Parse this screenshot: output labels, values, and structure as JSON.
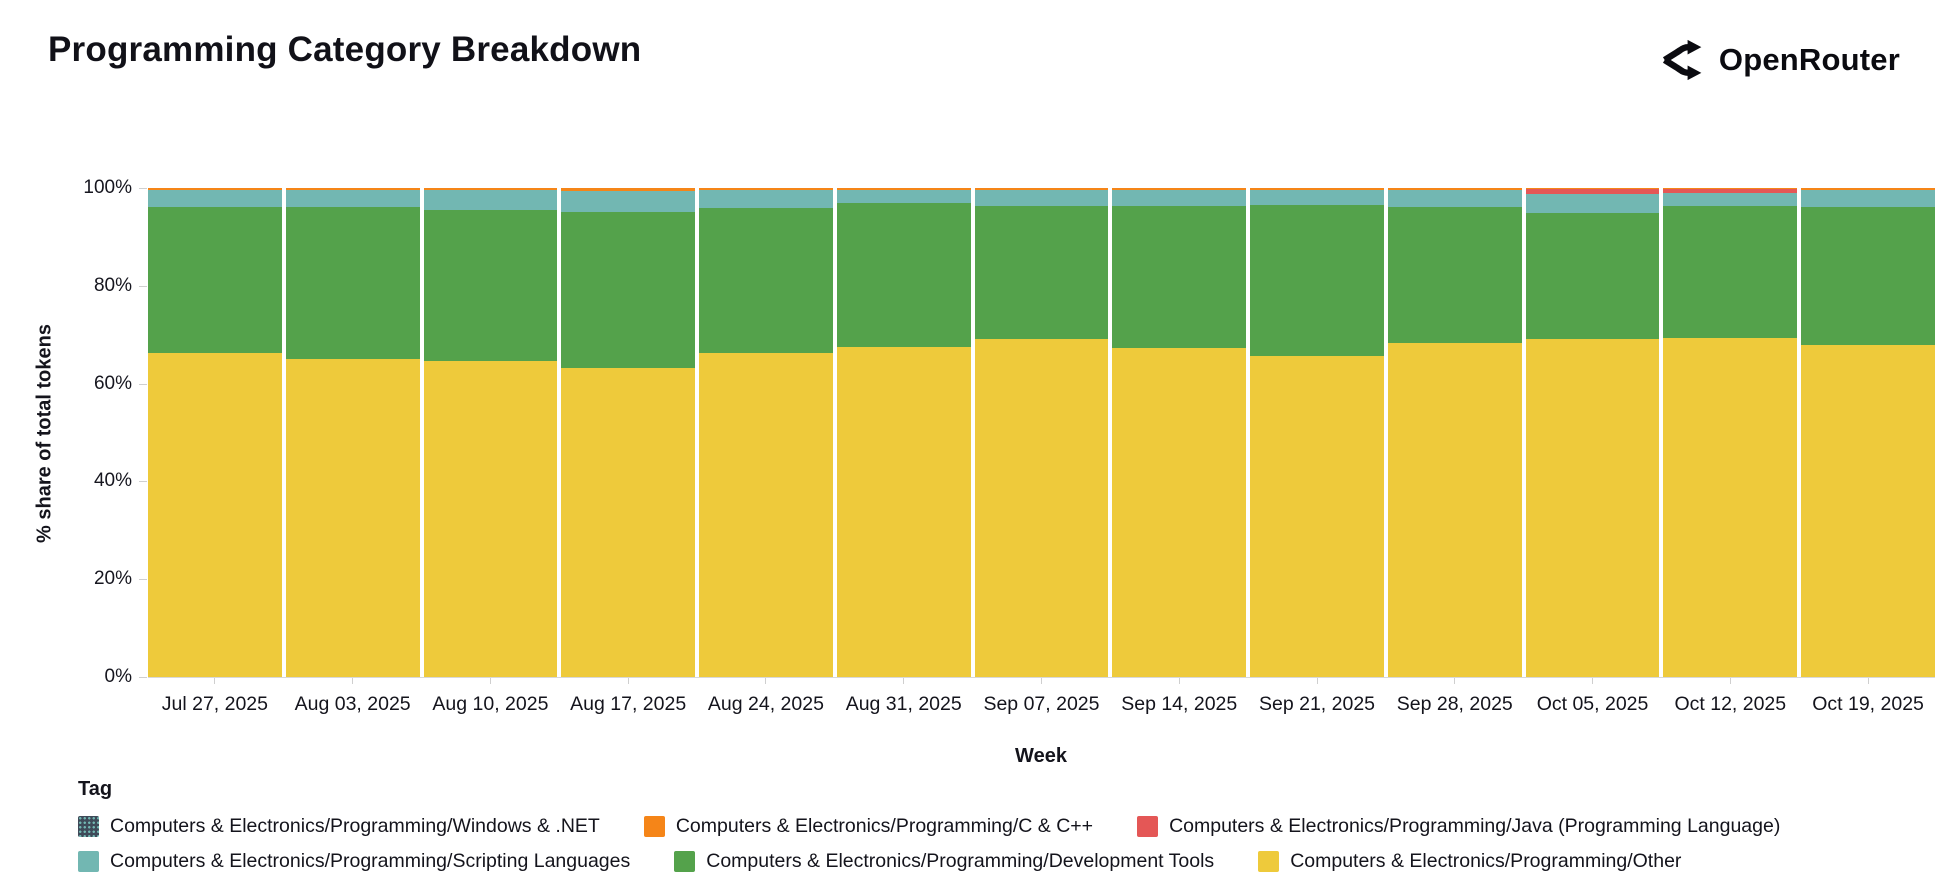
{
  "header": {
    "title": "Programming Category Breakdown",
    "brand": "OpenRouter"
  },
  "chart": {
    "y_axis_title": "% share of total tokens",
    "x_axis_title": "Week",
    "y_ticks": [
      "0%",
      "20%",
      "40%",
      "60%",
      "80%",
      "100%"
    ]
  },
  "legend": {
    "title": "Tag",
    "rows": [
      [
        {
          "label": "Computers & Electronics/Programming/Windows & .NET",
          "color": "#3e4a59",
          "pattern": true
        },
        {
          "label": "Computers & Electronics/Programming/C & C++",
          "color": "#f58518",
          "pattern": false
        },
        {
          "label": "Computers & Electronics/Programming/Java (Programming Language)",
          "color": "#e45756",
          "pattern": false
        }
      ],
      [
        {
          "label": "Computers & Electronics/Programming/Scripting Languages",
          "color": "#72b7b2",
          "pattern": false
        },
        {
          "label": "Computers & Electronics/Programming/Development Tools",
          "color": "#54a24b",
          "pattern": false
        },
        {
          "label": "Computers & Electronics/Programming/Other",
          "color": "#eeca3b",
          "pattern": false
        }
      ]
    ]
  },
  "chart_data": {
    "type": "bar",
    "stacked": true,
    "title": "Programming Category Breakdown",
    "xlabel": "Week",
    "ylabel": "% share of total tokens",
    "ylim": [
      0,
      100
    ],
    "y_tick_step": 20,
    "grid": false,
    "legend_position": "bottom",
    "categories": [
      "Jul 27, 2025",
      "Aug 03, 2025",
      "Aug 10, 2025",
      "Aug 17, 2025",
      "Aug 24, 2025",
      "Aug 31, 2025",
      "Sep 07, 2025",
      "Sep 14, 2025",
      "Sep 21, 2025",
      "Sep 28, 2025",
      "Oct 05, 2025",
      "Oct 12, 2025",
      "Oct 19, 2025"
    ],
    "stack_order_note": "series listed bottom-of-stack first",
    "series": [
      {
        "name": "Computers & Electronics/Programming/Other",
        "color": "#eeca3b",
        "values": [
          66.3,
          65.0,
          64.6,
          63.2,
          66.3,
          67.5,
          69.1,
          67.3,
          65.6,
          68.3,
          69.2,
          69.4,
          67.9
        ]
      },
      {
        "name": "Computers & Electronics/Programming/Development Tools",
        "color": "#54a24b",
        "values": [
          29.8,
          31.1,
          30.9,
          31.9,
          29.6,
          29.5,
          27.2,
          29.0,
          30.9,
          27.8,
          25.6,
          27.0,
          28.2
        ]
      },
      {
        "name": "Computers & Electronics/Programming/Scripting Languages",
        "color": "#72b7b2",
        "values": [
          3.4,
          3.4,
          4.0,
          4.3,
          3.6,
          2.6,
          3.2,
          3.2,
          3.0,
          3.4,
          4.0,
          2.6,
          3.4
        ]
      },
      {
        "name": "Computers & Electronics/Programming/Java (Programming Language)",
        "color": "#e45756",
        "values": [
          0,
          0,
          0,
          0,
          0,
          0,
          0,
          0,
          0,
          0,
          1.0,
          0.8,
          0
        ]
      },
      {
        "name": "Computers & Electronics/Programming/C & C++",
        "color": "#f58518",
        "values": [
          0.5,
          0.5,
          0.5,
          0.6,
          0.5,
          0.4,
          0.5,
          0.5,
          0.5,
          0.5,
          0.2,
          0.2,
          0.5
        ]
      },
      {
        "name": "Computers & Electronics/Programming/Windows & .NET",
        "color": "#3e4a59",
        "values": [
          0,
          0,
          0,
          0,
          0,
          0,
          0,
          0,
          0,
          0,
          0,
          0,
          0
        ]
      }
    ]
  }
}
